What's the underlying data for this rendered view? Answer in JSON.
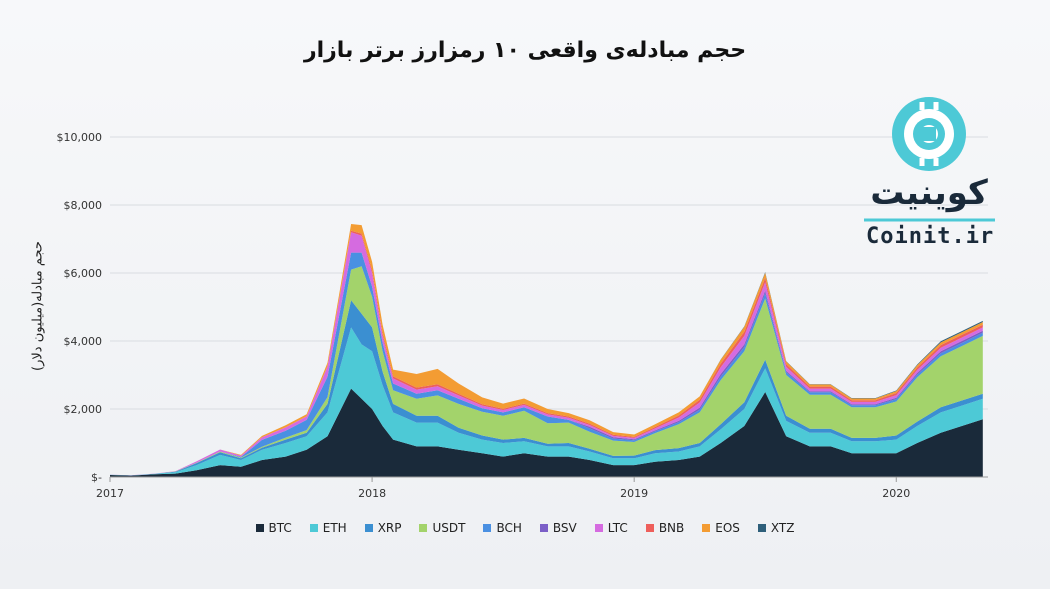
{
  "chart_data": {
    "type": "area",
    "stacked": true,
    "title": "حجم مبادله‌ی واقعی ۱۰ رمزارز برتر بازار",
    "ylabel": "حجم مبادله(میلیون دلار)",
    "xlabel": "",
    "ylim": [
      0,
      10000
    ],
    "y_ticks": [
      {
        "value": 0,
        "label": "$-"
      },
      {
        "value": 2000,
        "label": "$2,000"
      },
      {
        "value": 4000,
        "label": "$4,000"
      },
      {
        "value": 6000,
        "label": "$6,000"
      },
      {
        "value": 8000,
        "label": "$8,000"
      },
      {
        "value": 10000,
        "label": "$10,000"
      }
    ],
    "x_ticks": [
      {
        "value": 2017.0,
        "label": "2017"
      },
      {
        "value": 2018.0,
        "label": "2018"
      },
      {
        "value": 2019.0,
        "label": "2019"
      },
      {
        "value": 2020.0,
        "label": "2020"
      }
    ],
    "xlim": [
      2017.0,
      2020.35
    ],
    "grid": true,
    "legend_position": "bottom",
    "x": [
      2017.0,
      2017.08,
      2017.17,
      2017.25,
      2017.33,
      2017.42,
      2017.5,
      2017.58,
      2017.67,
      2017.75,
      2017.83,
      2017.92,
      2017.96,
      2018.0,
      2018.04,
      2018.08,
      2018.17,
      2018.25,
      2018.33,
      2018.42,
      2018.5,
      2018.58,
      2018.67,
      2018.75,
      2018.83,
      2018.92,
      2019.0,
      2019.08,
      2019.17,
      2019.25,
      2019.33,
      2019.42,
      2019.5,
      2019.58,
      2019.67,
      2019.75,
      2019.83,
      2019.92,
      2020.0,
      2020.08,
      2020.17,
      2020.25,
      2020.33
    ],
    "series": [
      {
        "name": "BTC",
        "color": "#1a2a3a",
        "values": [
          60,
          40,
          80,
          100,
          200,
          350,
          300,
          500,
          600,
          800,
          1200,
          2600,
          2300,
          2000,
          1500,
          1100,
          900,
          900,
          800,
          700,
          600,
          700,
          600,
          600,
          500,
          350,
          350,
          450,
          500,
          600,
          1000,
          1500,
          2500,
          1200,
          900,
          900,
          700,
          700,
          700,
          1000,
          1300,
          1500,
          1700
        ]
      },
      {
        "name": "ETH",
        "color": "#4dc9d6",
        "values": [
          5,
          5,
          10,
          40,
          150,
          300,
          200,
          300,
          400,
          400,
          700,
          1800,
          1600,
          1700,
          1200,
          800,
          700,
          700,
          500,
          400,
          400,
          350,
          300,
          300,
          250,
          200,
          200,
          250,
          250,
          300,
          400,
          500,
          700,
          450,
          400,
          400,
          350,
          350,
          400,
          500,
          600,
          600,
          600
        ]
      },
      {
        "name": "XRP",
        "color": "#3b8fd1",
        "values": [
          2,
          2,
          5,
          20,
          60,
          80,
          50,
          60,
          100,
          100,
          250,
          800,
          900,
          700,
          400,
          250,
          200,
          200,
          150,
          120,
          100,
          100,
          80,
          100,
          80,
          70,
          80,
          90,
          100,
          100,
          150,
          200,
          250,
          150,
          120,
          120,
          100,
          100,
          120,
          130,
          150,
          150,
          150
        ]
      },
      {
        "name": "USDT",
        "color": "#a3d36b",
        "values": [
          1,
          1,
          2,
          5,
          10,
          20,
          20,
          30,
          60,
          80,
          200,
          900,
          1400,
          900,
          600,
          400,
          500,
          600,
          700,
          700,
          700,
          800,
          600,
          600,
          500,
          450,
          400,
          500,
          700,
          900,
          1300,
          1500,
          1800,
          1200,
          1000,
          1000,
          900,
          900,
          1000,
          1300,
          1500,
          1600,
          1700
        ]
      },
      {
        "name": "BCH",
        "color": "#4a90e2",
        "values": [
          0,
          0,
          0,
          0,
          0,
          0,
          20,
          200,
          200,
          300,
          600,
          500,
          400,
          300,
          250,
          200,
          150,
          150,
          150,
          100,
          100,
          100,
          200,
          80,
          100,
          60,
          50,
          50,
          60,
          80,
          100,
          120,
          150,
          80,
          70,
          70,
          60,
          60,
          70,
          80,
          90,
          90,
          90
        ]
      },
      {
        "name": "BSV",
        "color": "#7b5fc7",
        "values": [
          0,
          0,
          0,
          0,
          0,
          0,
          0,
          0,
          0,
          0,
          0,
          0,
          0,
          0,
          0,
          0,
          0,
          0,
          0,
          0,
          0,
          0,
          0,
          0,
          50,
          40,
          30,
          30,
          40,
          60,
          80,
          80,
          80,
          40,
          30,
          30,
          30,
          30,
          40,
          50,
          60,
          60,
          60
        ]
      },
      {
        "name": "LTC",
        "color": "#d56be0",
        "values": [
          2,
          2,
          3,
          10,
          40,
          60,
          40,
          80,
          100,
          100,
          300,
          600,
          500,
          400,
          200,
          150,
          120,
          120,
          100,
          80,
          70,
          70,
          60,
          60,
          50,
          40,
          40,
          60,
          100,
          150,
          200,
          250,
          250,
          120,
          80,
          80,
          70,
          70,
          80,
          90,
          100,
          100,
          100
        ]
      },
      {
        "name": "BNB",
        "color": "#ee5f5b",
        "values": [
          0,
          0,
          0,
          0,
          0,
          0,
          0,
          0,
          0,
          5,
          10,
          40,
          60,
          80,
          80,
          60,
          60,
          60,
          50,
          40,
          40,
          40,
          40,
          40,
          40,
          30,
          30,
          40,
          60,
          80,
          100,
          120,
          130,
          80,
          60,
          60,
          50,
          50,
          60,
          70,
          80,
          80,
          80
        ]
      },
      {
        "name": "EOS",
        "color": "#f39c33",
        "values": [
          0,
          0,
          0,
          0,
          0,
          0,
          20,
          40,
          60,
          60,
          100,
          200,
          250,
          250,
          250,
          200,
          400,
          450,
          300,
          200,
          150,
          150,
          120,
          100,
          100,
          80,
          70,
          80,
          90,
          100,
          120,
          150,
          150,
          80,
          60,
          60,
          50,
          50,
          60,
          70,
          80,
          80,
          80
        ]
      },
      {
        "name": "XTZ",
        "color": "#2e5f7a",
        "values": [
          0,
          0,
          0,
          0,
          0,
          0,
          0,
          0,
          0,
          0,
          0,
          0,
          0,
          0,
          0,
          0,
          0,
          0,
          0,
          0,
          0,
          0,
          0,
          0,
          0,
          0,
          0,
          0,
          0,
          0,
          5,
          10,
          15,
          10,
          10,
          10,
          10,
          10,
          15,
          20,
          30,
          30,
          30
        ]
      }
    ]
  },
  "logo": {
    "persian_text": "کوینیت",
    "latin_text": "Coinit.ir"
  }
}
